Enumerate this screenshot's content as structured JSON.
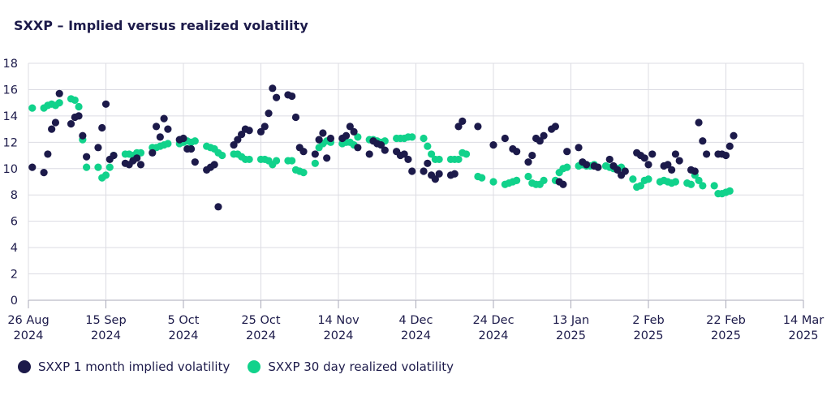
{
  "chart_data": {
    "type": "scatter",
    "title": "SXXP – Implied versus realized volatility",
    "ylim": [
      0,
      18
    ],
    "yticks": [
      0,
      2,
      4,
      6,
      8,
      10,
      12,
      14,
      16,
      18
    ],
    "xlim": [
      0,
      200
    ],
    "xticks": [
      {
        "day": 0,
        "line1": "26 Aug",
        "line2": "2024"
      },
      {
        "day": 20,
        "line1": "15 Sep",
        "line2": "2024"
      },
      {
        "day": 40,
        "line1": "5 Oct",
        "line2": "2024"
      },
      {
        "day": 60,
        "line1": "25 Oct",
        "line2": "2024"
      },
      {
        "day": 80,
        "line1": "14 Nov",
        "line2": "2024"
      },
      {
        "day": 100,
        "line1": "4 Dec",
        "line2": "2024"
      },
      {
        "day": 120,
        "line1": "24 Dec",
        "line2": "2024"
      },
      {
        "day": 140,
        "line1": "13 Jan",
        "line2": "2025"
      },
      {
        "day": 160,
        "line1": "2 Feb",
        "line2": "2025"
      },
      {
        "day": 180,
        "line1": "22 Feb",
        "line2": "2025"
      },
      {
        "day": 200,
        "line1": "14 Mar",
        "line2": "2025"
      }
    ],
    "x_unit": "days since 26 Aug 2024",
    "series": [
      {
        "name": "SXXP 1 month implied volatility",
        "color": "#1c1a4a",
        "points": [
          [
            1,
            10.1
          ],
          [
            4,
            9.7
          ],
          [
            5,
            11.1
          ],
          [
            6,
            13.0
          ],
          [
            7,
            13.5
          ],
          [
            8,
            15.7
          ],
          [
            11,
            13.4
          ],
          [
            12,
            13.9
          ],
          [
            13,
            14.0
          ],
          [
            14,
            12.5
          ],
          [
            15,
            10.9
          ],
          [
            18,
            11.6
          ],
          [
            19,
            13.1
          ],
          [
            20,
            14.9
          ],
          [
            21,
            10.7
          ],
          [
            22,
            11.0
          ],
          [
            25,
            10.4
          ],
          [
            26,
            10.3
          ],
          [
            27,
            10.6
          ],
          [
            28,
            10.8
          ],
          [
            29,
            10.3
          ],
          [
            32,
            11.2
          ],
          [
            33,
            13.2
          ],
          [
            34,
            12.4
          ],
          [
            35,
            13.8
          ],
          [
            36,
            13.0
          ],
          [
            39,
            12.2
          ],
          [
            40,
            12.3
          ],
          [
            41,
            11.5
          ],
          [
            42,
            11.5
          ],
          [
            43,
            10.5
          ],
          [
            46,
            9.9
          ],
          [
            47,
            10.1
          ],
          [
            48,
            10.3
          ],
          [
            49,
            7.1
          ],
          [
            53,
            11.8
          ],
          [
            54,
            12.2
          ],
          [
            55,
            12.6
          ],
          [
            56,
            13.0
          ],
          [
            57,
            12.9
          ],
          [
            60,
            12.8
          ],
          [
            61,
            13.2
          ],
          [
            62,
            14.2
          ],
          [
            63,
            16.1
          ],
          [
            64,
            15.4
          ],
          [
            67,
            15.6
          ],
          [
            68,
            15.5
          ],
          [
            69,
            13.9
          ],
          [
            70,
            11.6
          ],
          [
            71,
            11.3
          ],
          [
            74,
            11.1
          ],
          [
            75,
            12.2
          ],
          [
            76,
            12.7
          ],
          [
            77,
            10.8
          ],
          [
            78,
            12.3
          ],
          [
            81,
            12.3
          ],
          [
            82,
            12.5
          ],
          [
            83,
            13.2
          ],
          [
            84,
            12.8
          ],
          [
            85,
            11.6
          ],
          [
            88,
            11.1
          ],
          [
            89,
            12.1
          ],
          [
            90,
            11.9
          ],
          [
            91,
            11.8
          ],
          [
            92,
            11.4
          ],
          [
            95,
            11.3
          ],
          [
            96,
            11.0
          ],
          [
            97,
            11.1
          ],
          [
            98,
            10.7
          ],
          [
            99,
            9.8
          ],
          [
            102,
            9.8
          ],
          [
            103,
            10.4
          ],
          [
            104,
            9.5
          ],
          [
            105,
            9.2
          ],
          [
            106,
            9.6
          ],
          [
            109,
            9.5
          ],
          [
            110,
            9.6
          ],
          [
            111,
            13.2
          ],
          [
            112,
            13.6
          ],
          [
            116,
            13.2
          ],
          [
            120,
            11.8
          ],
          [
            123,
            12.3
          ],
          [
            125,
            11.5
          ],
          [
            126,
            11.3
          ],
          [
            129,
            10.5
          ],
          [
            130,
            11.0
          ],
          [
            131,
            12.3
          ],
          [
            132,
            12.1
          ],
          [
            133,
            12.5
          ],
          [
            135,
            13.0
          ],
          [
            136,
            13.2
          ],
          [
            137,
            9.0
          ],
          [
            138,
            8.8
          ],
          [
            139,
            11.3
          ],
          [
            142,
            11.6
          ],
          [
            143,
            10.5
          ],
          [
            144,
            10.3
          ],
          [
            146,
            10.2
          ],
          [
            147,
            10.1
          ],
          [
            150,
            10.7
          ],
          [
            151,
            10.2
          ],
          [
            152,
            9.9
          ],
          [
            153,
            9.5
          ],
          [
            154,
            9.8
          ],
          [
            157,
            11.2
          ],
          [
            158,
            11.0
          ],
          [
            159,
            10.8
          ],
          [
            160,
            10.3
          ],
          [
            161,
            11.1
          ],
          [
            164,
            10.2
          ],
          [
            165,
            10.3
          ],
          [
            166,
            9.9
          ],
          [
            167,
            11.1
          ],
          [
            168,
            10.6
          ],
          [
            171,
            9.9
          ],
          [
            172,
            9.8
          ],
          [
            173,
            13.5
          ],
          [
            174,
            12.1
          ],
          [
            175,
            11.1
          ],
          [
            178,
            11.1
          ],
          [
            179,
            11.1
          ],
          [
            180,
            11.0
          ],
          [
            181,
            11.7
          ],
          [
            182,
            12.5
          ]
        ]
      },
      {
        "name": "SXXP 30 day realized volatility",
        "color": "#11d28b",
        "points": [
          [
            1,
            14.6
          ],
          [
            4,
            14.6
          ],
          [
            5,
            14.8
          ],
          [
            6,
            14.9
          ],
          [
            7,
            14.8
          ],
          [
            8,
            15.0
          ],
          [
            11,
            15.3
          ],
          [
            12,
            15.2
          ],
          [
            13,
            14.7
          ],
          [
            14,
            12.2
          ],
          [
            15,
            10.1
          ],
          [
            18,
            10.1
          ],
          [
            19,
            9.3
          ],
          [
            20,
            9.5
          ],
          [
            21,
            10.1
          ],
          [
            22,
            11.0
          ],
          [
            25,
            11.1
          ],
          [
            26,
            11.1
          ],
          [
            27,
            11.0
          ],
          [
            28,
            11.2
          ],
          [
            29,
            11.2
          ],
          [
            32,
            11.6
          ],
          [
            33,
            11.6
          ],
          [
            34,
            11.7
          ],
          [
            35,
            11.8
          ],
          [
            36,
            11.9
          ],
          [
            39,
            11.9
          ],
          [
            40,
            12.0
          ],
          [
            41,
            12.1
          ],
          [
            42,
            12.0
          ],
          [
            43,
            12.1
          ],
          [
            46,
            11.7
          ],
          [
            47,
            11.6
          ],
          [
            48,
            11.5
          ],
          [
            49,
            11.2
          ],
          [
            50,
            11.0
          ],
          [
            53,
            11.1
          ],
          [
            54,
            11.1
          ],
          [
            55,
            10.9
          ],
          [
            56,
            10.7
          ],
          [
            57,
            10.7
          ],
          [
            60,
            10.7
          ],
          [
            61,
            10.7
          ],
          [
            62,
            10.6
          ],
          [
            63,
            10.3
          ],
          [
            64,
            10.6
          ],
          [
            67,
            10.6
          ],
          [
            68,
            10.6
          ],
          [
            69,
            9.9
          ],
          [
            70,
            9.8
          ],
          [
            71,
            9.7
          ],
          [
            74,
            10.4
          ],
          [
            75,
            11.6
          ],
          [
            76,
            11.9
          ],
          [
            77,
            12.1
          ],
          [
            78,
            12.0
          ],
          [
            81,
            11.9
          ],
          [
            82,
            12.0
          ],
          [
            83,
            12.0
          ],
          [
            84,
            11.8
          ],
          [
            85,
            12.4
          ],
          [
            88,
            12.2
          ],
          [
            89,
            12.2
          ],
          [
            90,
            12.1
          ],
          [
            91,
            12.0
          ],
          [
            92,
            12.1
          ],
          [
            95,
            12.3
          ],
          [
            96,
            12.3
          ],
          [
            97,
            12.3
          ],
          [
            98,
            12.4
          ],
          [
            99,
            12.4
          ],
          [
            102,
            12.3
          ],
          [
            103,
            11.7
          ],
          [
            104,
            11.1
          ],
          [
            105,
            10.7
          ],
          [
            106,
            10.7
          ],
          [
            109,
            10.7
          ],
          [
            110,
            10.7
          ],
          [
            111,
            10.7
          ],
          [
            112,
            11.2
          ],
          [
            113,
            11.1
          ],
          [
            116,
            9.4
          ],
          [
            117,
            9.3
          ],
          [
            120,
            9.0
          ],
          [
            123,
            8.8
          ],
          [
            124,
            8.9
          ],
          [
            125,
            9.0
          ],
          [
            126,
            9.1
          ],
          [
            129,
            9.4
          ],
          [
            130,
            8.9
          ],
          [
            131,
            8.8
          ],
          [
            132,
            8.8
          ],
          [
            133,
            9.1
          ],
          [
            136,
            9.1
          ],
          [
            137,
            9.7
          ],
          [
            138,
            10.0
          ],
          [
            139,
            10.1
          ],
          [
            142,
            10.2
          ],
          [
            143,
            10.3
          ],
          [
            144,
            10.2
          ],
          [
            145,
            10.2
          ],
          [
            146,
            10.3
          ],
          [
            149,
            10.2
          ],
          [
            150,
            10.1
          ],
          [
            151,
            10.0
          ],
          [
            152,
            10.0
          ],
          [
            153,
            10.1
          ],
          [
            156,
            9.2
          ],
          [
            157,
            8.6
          ],
          [
            158,
            8.7
          ],
          [
            159,
            9.1
          ],
          [
            160,
            9.2
          ],
          [
            163,
            9.0
          ],
          [
            164,
            9.1
          ],
          [
            165,
            9.0
          ],
          [
            166,
            8.9
          ],
          [
            167,
            9.0
          ],
          [
            170,
            8.9
          ],
          [
            171,
            8.8
          ],
          [
            172,
            9.5
          ],
          [
            173,
            9.1
          ],
          [
            174,
            8.7
          ],
          [
            177,
            8.7
          ],
          [
            178,
            8.1
          ],
          [
            179,
            8.1
          ],
          [
            180,
            8.2
          ],
          [
            181,
            8.3
          ]
        ]
      }
    ],
    "legend": [
      "SXXP 1 month implied volatility",
      "SXXP 30 day realized volatility"
    ]
  }
}
